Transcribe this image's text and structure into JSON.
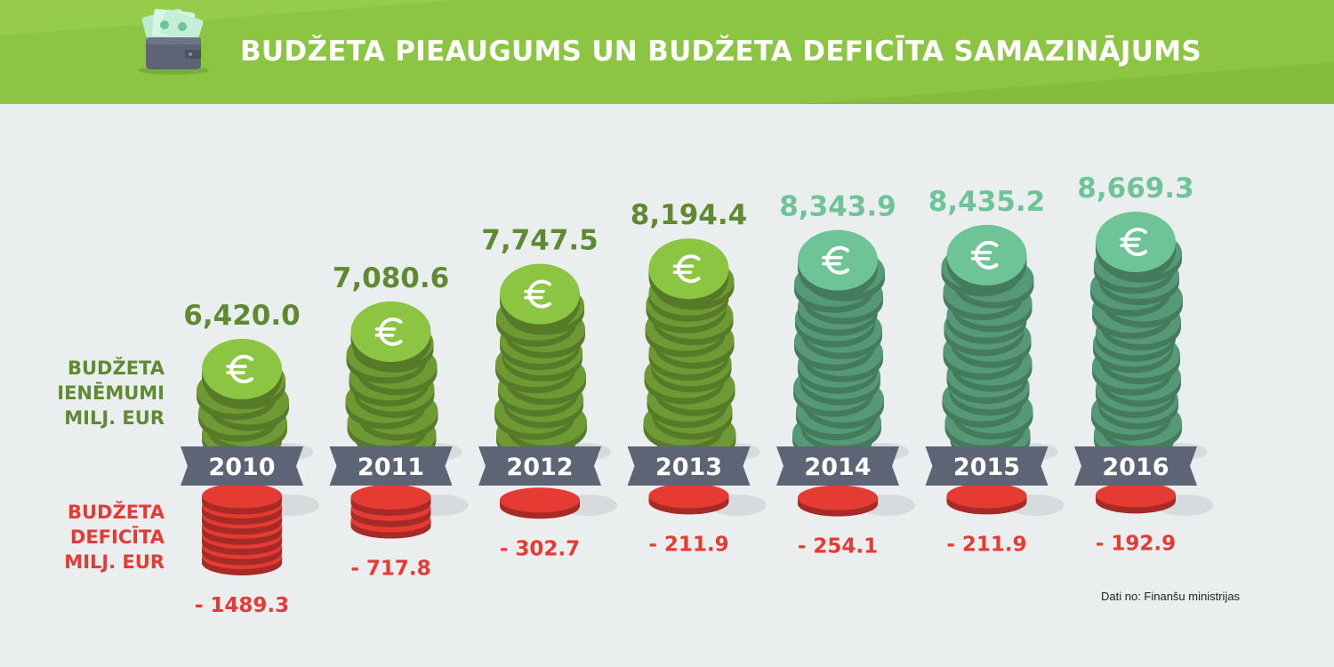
{
  "title": "BUDŽETA PIEAUGUMS UN BUDŽETA DEFICĪTA SAMAZINĀJUMS",
  "revenue_label": [
    "BUDŽETA",
    "IENĒMUMI",
    "MILJ. EUR"
  ],
  "deficit_label": [
    "BUDŽETA",
    "DEFICĪTA",
    "MILJ. EUR"
  ],
  "source": "Dati no: Finanšu ministrijas",
  "colors": {
    "header": "#8cc542",
    "revenue_coin_light": "#8cc542",
    "revenue_coin_teal": "#6ec497",
    "revenue_text_green": "#5f8a32",
    "revenue_text_teal": "#6ec497",
    "deficit_coin": "#e63b33",
    "ribbon": "#5c6476",
    "background": "#ebeeef"
  },
  "icons": {
    "coin_symbol": "euro-icon",
    "header_icon": "wallet-icon"
  },
  "chart_data": {
    "type": "bar",
    "categories": [
      "2010",
      "2011",
      "2012",
      "2013",
      "2014",
      "2015",
      "2016"
    ],
    "series": [
      {
        "name": "BUDŽETA IENĒMUMI MILJ. EUR",
        "values": [
          6420.0,
          7080.6,
          7747.5,
          8194.4,
          8343.9,
          8435.2,
          8669.3
        ],
        "labels": [
          "6,420.0",
          "7,080.6",
          "7,747.5",
          "8,194.4",
          "8,343.9",
          "8,435.2",
          "8,669.3"
        ]
      },
      {
        "name": "BUDŽETA DEFICĪTA MILJ. EUR",
        "values": [
          -1489.3,
          -717.8,
          -302.7,
          -211.9,
          -254.1,
          -211.9,
          -192.9
        ],
        "labels": [
          "- 1489.3",
          "- 717.8",
          "- 302.7",
          "- 211.9",
          "- 254.1",
          "- 211.9",
          "- 192.9"
        ]
      }
    ]
  }
}
